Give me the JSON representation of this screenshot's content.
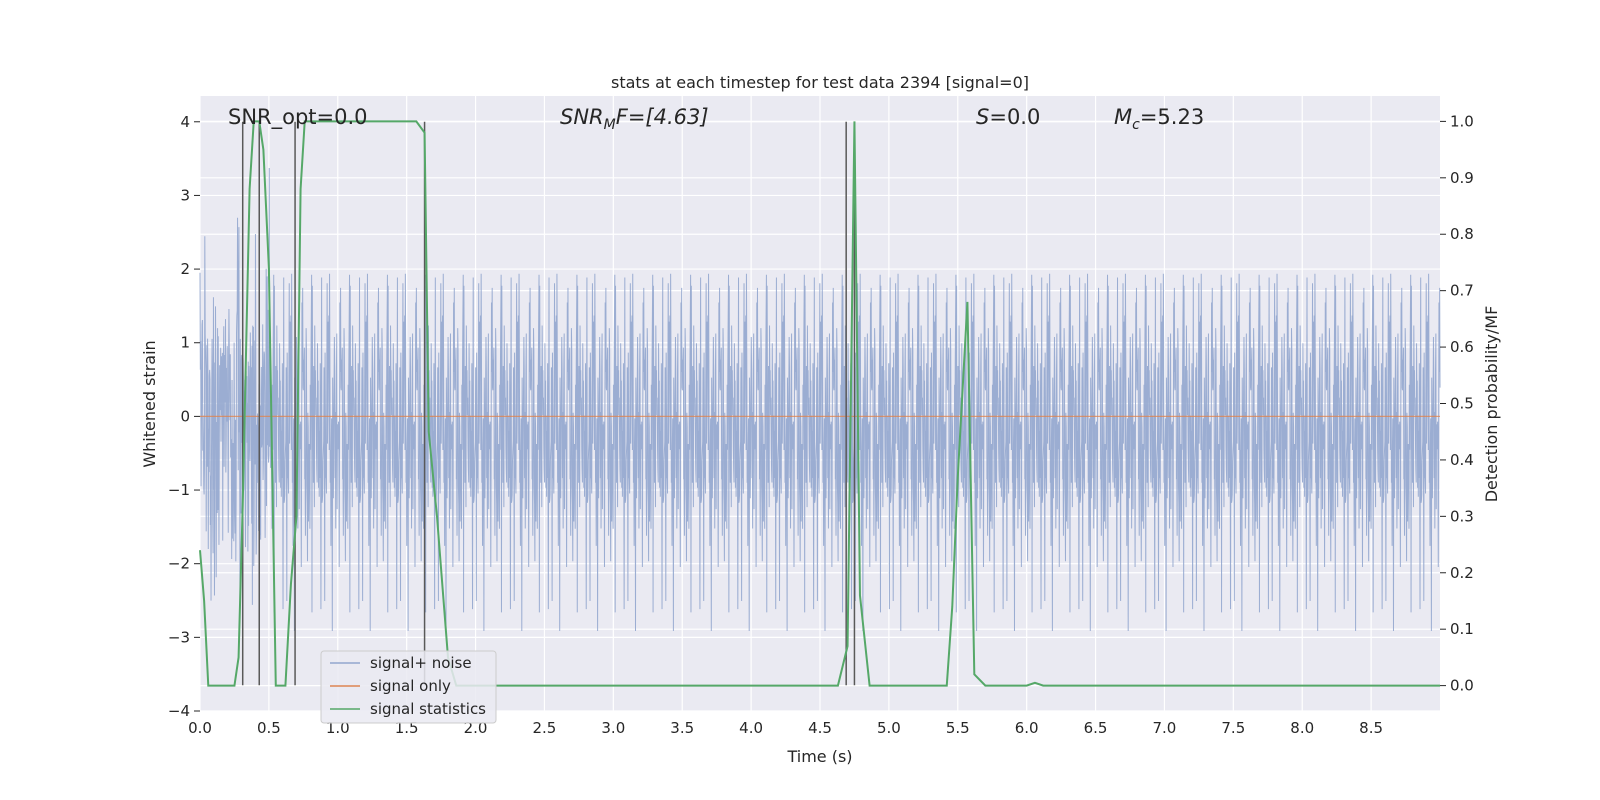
{
  "chart_data": {
    "type": "line",
    "title": "stats at each timestep for test data 2394 [signal=0]",
    "xlabel": "Time (s)",
    "ylabel_left": "Whitened strain",
    "ylabel_right": "Detection probability/MF",
    "xlim": [
      0,
      9.0
    ],
    "ylim_left": [
      -4.0,
      4.35
    ],
    "ylim_right": [
      -0.045,
      1.045
    ],
    "x_ticks": [
      "0.0",
      "0.5",
      "1.0",
      "1.5",
      "2.0",
      "2.5",
      "3.0",
      "3.5",
      "4.0",
      "4.5",
      "5.0",
      "5.5",
      "6.0",
      "6.5",
      "7.0",
      "7.5",
      "8.0",
      "8.5"
    ],
    "y_left_ticks": [
      "4",
      "3",
      "2",
      "1",
      "0",
      "−1",
      "−2",
      "−3",
      "−4"
    ],
    "y_right_ticks": [
      "1.0",
      "0.9",
      "0.8",
      "0.7",
      "0.6",
      "0.5",
      "0.4",
      "0.3",
      "0.2",
      "0.1",
      "0.0"
    ],
    "grid": true,
    "legend_position": "lower-left",
    "annotations": {
      "snr_opt": "SNR_opt=0.0",
      "snr_mf_prefix": "SNR",
      "snr_mf_sub": "M",
      "snr_mf_suffix": "F=[4.63]",
      "s_italic": "S",
      "s_value": "=0.0",
      "mc_italic": "M",
      "mc_sub": "c",
      "mc_value": "=5.23"
    },
    "series": [
      {
        "name": "signal+ noise",
        "axis": "left",
        "color": "#92a6ce",
        "description_range": "noise approximately within ±2.6 with occasional peaks up to about ±3.9"
      },
      {
        "name": "signal only",
        "axis": "left",
        "color": "#dd8452",
        "values": "zero everywhere"
      },
      {
        "name": "signal statistics",
        "axis": "right",
        "color": "#55a868",
        "x": [
          0.0,
          0.03,
          0.06,
          0.25,
          0.28,
          0.31,
          0.36,
          0.39,
          0.43,
          0.46,
          0.5,
          0.55,
          0.62,
          0.66,
          0.7,
          0.73,
          0.76,
          1.57,
          1.63,
          1.66,
          1.72,
          1.8,
          1.86,
          4.63,
          4.7,
          4.75,
          4.79,
          4.86,
          5.42,
          5.46,
          5.5,
          5.57,
          5.62,
          5.7,
          6.0,
          6.06,
          6.12,
          9.0
        ],
        "values": [
          0.24,
          0.15,
          0.0,
          0.0,
          0.05,
          0.32,
          0.88,
          1.0,
          1.0,
          0.95,
          0.74,
          0.0,
          0.0,
          0.18,
          0.3,
          0.88,
          1.0,
          1.0,
          0.98,
          0.45,
          0.3,
          0.05,
          0.0,
          0.0,
          0.07,
          1.0,
          0.16,
          0.0,
          0.0,
          0.14,
          0.37,
          0.68,
          0.02,
          0.0,
          0.0,
          0.005,
          0.0,
          0.0
        ]
      },
      {
        "name": "detection markers",
        "axis": "left",
        "color": "#595959",
        "x": [
          0.31,
          0.43,
          0.69,
          1.63,
          4.69,
          4.75
        ],
        "from": -3.65,
        "to": 4.0
      }
    ]
  }
}
